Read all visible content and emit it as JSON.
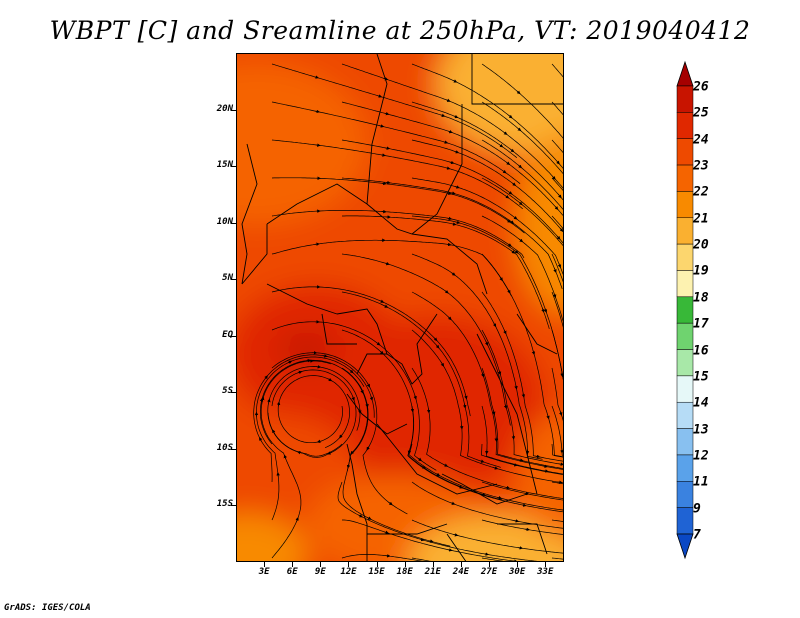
{
  "title": "WBPT [C] and Sreamline at 250hPa, VT: 2019040412",
  "credit": "GrADS: IGES/COLA",
  "map": {
    "variable": "Wet-bulb potential temperature with streamlines",
    "level": "250hPa",
    "valid_time": "2019040412",
    "lat_labels": [
      "20N",
      "15N",
      "10N",
      "5N",
      "EQ",
      "5S",
      "10S",
      "15S"
    ],
    "lat_values": [
      20,
      15,
      10,
      5,
      0,
      -5,
      -10,
      -15
    ],
    "lon_labels": [
      "3E",
      "6E",
      "9E",
      "12E",
      "15E",
      "18E",
      "21E",
      "24E",
      "27E",
      "30E",
      "33E"
    ],
    "lon_values": [
      3,
      6,
      9,
      12,
      15,
      18,
      21,
      24,
      27,
      30,
      33
    ],
    "lon_range": [
      0,
      35
    ],
    "lat_range": [
      -20,
      25
    ]
  },
  "colorbar": {
    "labels": [
      "26",
      "25",
      "24",
      "23",
      "22",
      "21",
      "20",
      "19",
      "18",
      "17",
      "16",
      "15",
      "14",
      "13",
      "12",
      "11",
      "9",
      "7"
    ],
    "colors": [
      "#a50000",
      "#c81400",
      "#e02800",
      "#ee4a00",
      "#f56400",
      "#f88a00",
      "#fab030",
      "#fcd66e",
      "#fdf2b0",
      "#38b838",
      "#6fd36f",
      "#a8e8a8",
      "#e6f8f8",
      "#b6dcf6",
      "#88c0f0",
      "#5aa2ea",
      "#3a82e0",
      "#1f63d4",
      "#0a48c4"
    ]
  },
  "field_colors": {
    "c20": "#fab030",
    "c21": "#f88a00",
    "c22": "#f56400",
    "c23": "#ee4a00",
    "c24": "#e02800"
  }
}
